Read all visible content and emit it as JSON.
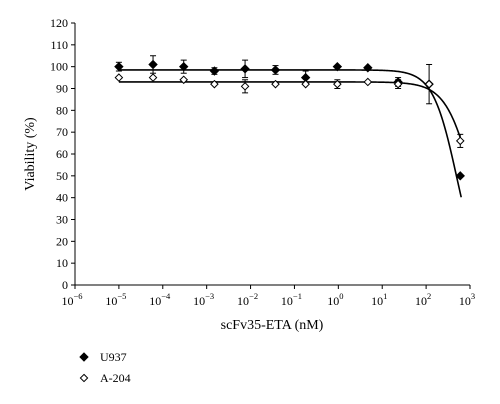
{
  "chart_data": {
    "type": "scatter",
    "title": "",
    "xlabel": "scFv35-ETA (nM)",
    "ylabel": "Viability (%)",
    "x_scale": "log",
    "xlim": [
      1e-06,
      1000
    ],
    "ylim": [
      0,
      120
    ],
    "y_ticks": [
      "0",
      "10",
      "20",
      "30",
      "40",
      "50",
      "60",
      "70",
      "80",
      "90",
      "100",
      "110",
      "120"
    ],
    "x_ticks": [
      {
        "base": "10",
        "exp": "−6"
      },
      {
        "base": "10",
        "exp": "−5"
      },
      {
        "base": "10",
        "exp": "−4"
      },
      {
        "base": "10",
        "exp": "−3"
      },
      {
        "base": "10",
        "exp": "−2"
      },
      {
        "base": "10",
        "exp": "−1"
      },
      {
        "base": "10",
        "exp": "0"
      },
      {
        "base": "10",
        "exp": "1"
      },
      {
        "base": "10",
        "exp": "2"
      },
      {
        "base": "10",
        "exp": "3"
      }
    ],
    "grid": false,
    "legend_position": "bottom-left",
    "series": [
      {
        "name": "U937",
        "marker": "filled-diamond",
        "color": "#000000",
        "x": [
          1e-05,
          6e-05,
          0.0003,
          0.0015,
          0.0075,
          0.037,
          0.18,
          0.95,
          4.7,
          23,
          117,
          600
        ],
        "y": [
          100,
          101,
          100,
          98,
          99,
          98.5,
          95,
          100,
          99.5,
          93,
          92,
          50
        ],
        "error": [
          2,
          4,
          3,
          1.5,
          4,
          2,
          3,
          0,
          0,
          2,
          9,
          0
        ],
        "fit_plateau": 98.5,
        "fit_ic50": 500,
        "fit_hill": 1.6
      },
      {
        "name": "A-204",
        "marker": "open-diamond",
        "color": "#000000",
        "x": [
          1e-05,
          6e-05,
          0.0003,
          0.0015,
          0.0075,
          0.037,
          0.18,
          0.95,
          4.7,
          23,
          117,
          600
        ],
        "y": [
          95,
          95,
          94,
          92,
          91,
          92,
          92,
          92,
          93,
          92,
          92,
          66
        ],
        "error": [
          0,
          0,
          0,
          0,
          3,
          0,
          0,
          2,
          0,
          2,
          0,
          3
        ],
        "fit_plateau": 93,
        "fit_ic50": 1200,
        "fit_hill": 1.4
      }
    ]
  }
}
